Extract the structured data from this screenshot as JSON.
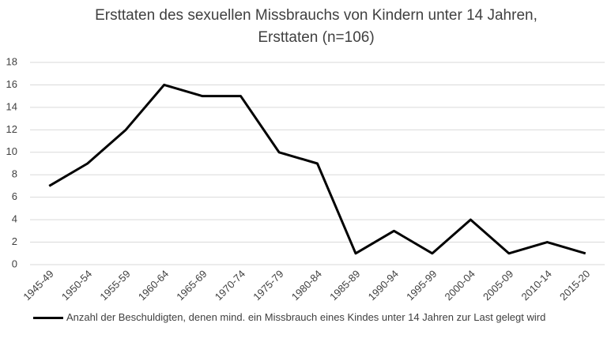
{
  "chart_data": {
    "type": "line",
    "title": [
      "Ersttaten des sexuellen Missbrauchs von Kindern unter 14 Jahren,",
      "Ersttaten (n=106)"
    ],
    "categories": [
      "1945-49",
      "1950-54",
      "1955-59",
      "1960-64",
      "1965-69",
      "1970-74",
      "1975-79",
      "1980-84",
      "1985-89",
      "1990-94",
      "1995-99",
      "2000-04",
      "2005-09",
      "2010-14",
      "2015-20"
    ],
    "series": [
      {
        "name": "Anzahl der Beschuldigten, denen mind. ein Missbrauch eines Kindes unter 14 Jahren zur Last gelegt wird",
        "color": "#000000",
        "values": [
          7,
          9,
          12,
          16,
          15,
          15,
          10,
          9,
          1,
          3,
          1,
          4,
          1,
          2,
          1
        ]
      }
    ],
    "ylim": [
      0,
      18
    ],
    "yticks": [
      0,
      2,
      4,
      6,
      8,
      10,
      12,
      14,
      16,
      18
    ],
    "grid": true,
    "legend": "bottom"
  }
}
